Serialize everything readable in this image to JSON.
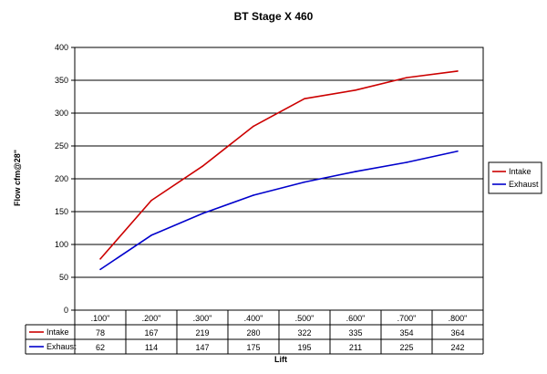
{
  "chart_data": {
    "type": "line",
    "title": "BT Stage X 460",
    "xlabel": "Lift",
    "ylabel": "Flow cfm@28\"",
    "categories": [
      ".100\"",
      ".200\"",
      ".300\"",
      ".400\"",
      ".500\"",
      ".600\"",
      ".700\"",
      ".800\""
    ],
    "ylim": [
      0,
      400
    ],
    "yticks": [
      0,
      50,
      100,
      150,
      200,
      250,
      300,
      350,
      400
    ],
    "grid": true,
    "legend": "right",
    "series": [
      {
        "name": "Intake",
        "color": "#cc0000",
        "values": [
          78,
          167,
          219,
          280,
          322,
          335,
          354,
          364
        ]
      },
      {
        "name": "Exhaust",
        "color": "#0000cc",
        "values": [
          62,
          114,
          147,
          175,
          195,
          211,
          225,
          242
        ]
      }
    ]
  }
}
